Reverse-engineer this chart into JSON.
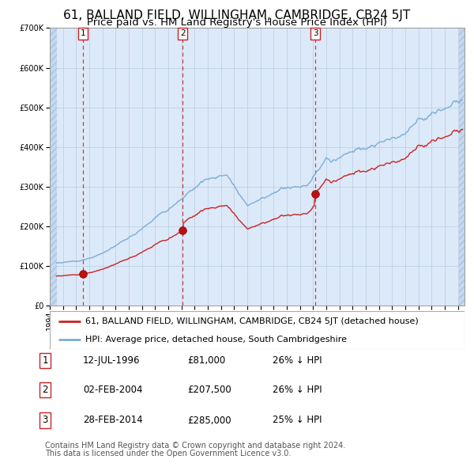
{
  "title": "61, BALLAND FIELD, WILLINGHAM, CAMBRIDGE, CB24 5JT",
  "subtitle": "Price paid vs. HM Land Registry's House Price Index (HPI)",
  "legend_property": "61, BALLAND FIELD, WILLINGHAM, CAMBRIDGE, CB24 5JT (detached house)",
  "legend_hpi": "HPI: Average price, detached house, South Cambridgeshire",
  "footer1": "Contains HM Land Registry data © Crown copyright and database right 2024.",
  "footer2": "This data is licensed under the Open Government Licence v3.0.",
  "sales": [
    {
      "num": 1,
      "date": "12-JUL-1996",
      "price": 81000,
      "price_str": "£81,000",
      "pct": "26% ↓ HPI",
      "x_year": 1996.54
    },
    {
      "num": 2,
      "date": "02-FEB-2004",
      "price": 207500,
      "price_str": "£207,500",
      "pct": "26% ↓ HPI",
      "x_year": 2004.09
    },
    {
      "num": 3,
      "date": "28-FEB-2014",
      "price": 285000,
      "price_str": "£285,000",
      "pct": "25% ↓ HPI",
      "x_year": 2014.16
    }
  ],
  "ylim": [
    0,
    700000
  ],
  "yticks": [
    0,
    100000,
    200000,
    300000,
    400000,
    500000,
    600000,
    700000
  ],
  "xmin": 1994.0,
  "xmax": 2025.5,
  "hpi_start_year": 1994.5,
  "hpi_end_year": 2025.3,
  "background_color": "#dce9f8",
  "hatch_bg_color": "#c5d8ef",
  "grid_color": "#b8cce0",
  "line_color_red": "#cc2222",
  "line_color_blue": "#7aaed6",
  "dashed_color": "#cc2222",
  "title_fontsize": 11,
  "subtitle_fontsize": 9.5,
  "axis_tick_fontsize": 7,
  "legend_fontsize": 8,
  "table_fontsize": 8.5,
  "footer_fontsize": 7
}
